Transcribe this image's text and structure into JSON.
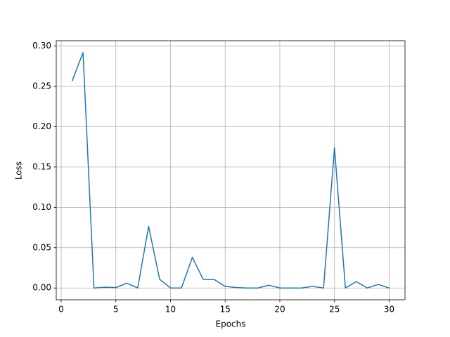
{
  "chart_data": {
    "type": "line",
    "xlabel": "Epochs",
    "ylabel": "Loss",
    "x": [
      1,
      2,
      3,
      4,
      5,
      6,
      7,
      8,
      9,
      10,
      11,
      12,
      13,
      14,
      15,
      16,
      17,
      18,
      19,
      20,
      21,
      22,
      23,
      24,
      25,
      26,
      27,
      28,
      29,
      30
    ],
    "series": [
      {
        "color": "#1f77b4",
        "values": [
          0.2565,
          0.292,
          0,
          0.001,
          0.0005,
          0.006,
          0,
          0.0765,
          0.011,
          0,
          0,
          0.038,
          0.0105,
          0.0105,
          0.002,
          0.0005,
          0,
          0,
          0.0035,
          0,
          0,
          0,
          0.002,
          0,
          0.174,
          0,
          0.008,
          0,
          0.0045,
          0
        ]
      }
    ],
    "xlim": [
      -0.45,
      31.45
    ],
    "ylim": [
      -0.0146,
      0.3066
    ],
    "xticks": [
      0,
      5,
      10,
      15,
      20,
      25,
      30
    ],
    "yticks": [
      {
        "value": 0,
        "label": "0.00"
      },
      {
        "value": 0.05,
        "label": "0.05"
      },
      {
        "value": 0.1,
        "label": "0.10"
      },
      {
        "value": 0.15,
        "label": "0.15"
      },
      {
        "value": 0.2,
        "label": "0.20"
      },
      {
        "value": 0.25,
        "label": "0.25"
      },
      {
        "value": 0.3,
        "label": "0.30"
      }
    ],
    "grid": true
  }
}
